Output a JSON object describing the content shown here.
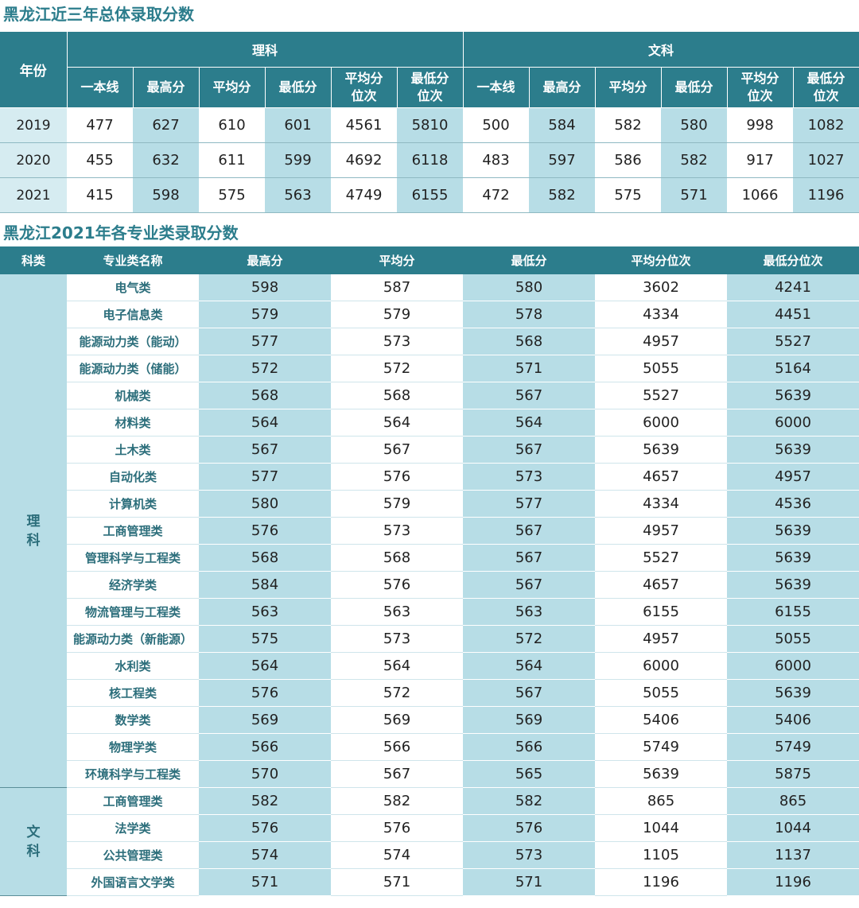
{
  "title_overall": "黑龙江近三年总体录取分数",
  "title_majors": "黑龙江2021年各专业类录取分数",
  "overall": {
    "year_header": "年份",
    "groups": [
      "理科",
      "文科"
    ],
    "sub_headers": [
      "一本线",
      "最高分",
      "平均分",
      "最低分",
      "平均分位次",
      "最低分位次"
    ],
    "rows": [
      {
        "year": "2019",
        "values": [
          "477",
          "627",
          "610",
          "601",
          "4561",
          "5810",
          "500",
          "584",
          "582",
          "580",
          "998",
          "1082"
        ]
      },
      {
        "year": "2020",
        "values": [
          "455",
          "632",
          "611",
          "599",
          "4692",
          "6118",
          "483",
          "597",
          "586",
          "582",
          "917",
          "1027"
        ]
      },
      {
        "year": "2021",
        "values": [
          "415",
          "598",
          "575",
          "563",
          "4749",
          "6155",
          "472",
          "582",
          "575",
          "571",
          "1066",
          "1196"
        ]
      }
    ]
  },
  "majors": {
    "headers": [
      "科类",
      "专业类名称",
      "最高分",
      "平均分",
      "最低分",
      "平均分位次",
      "最低分位次"
    ],
    "groups": [
      {
        "category": "理科",
        "rows": [
          {
            "name": "电气类",
            "values": [
              "598",
              "587",
              "580",
              "3602",
              "4241"
            ]
          },
          {
            "name": "电子信息类",
            "values": [
              "579",
              "579",
              "578",
              "4334",
              "4451"
            ]
          },
          {
            "name": "能源动力类（能动）",
            "values": [
              "577",
              "573",
              "568",
              "4957",
              "5527"
            ]
          },
          {
            "name": "能源动力类（储能）",
            "values": [
              "572",
              "572",
              "571",
              "5055",
              "5164"
            ]
          },
          {
            "name": "机械类",
            "values": [
              "568",
              "568",
              "567",
              "5527",
              "5639"
            ]
          },
          {
            "name": "材料类",
            "values": [
              "564",
              "564",
              "564",
              "6000",
              "6000"
            ]
          },
          {
            "name": "土木类",
            "values": [
              "567",
              "567",
              "567",
              "5639",
              "5639"
            ]
          },
          {
            "name": "自动化类",
            "values": [
              "577",
              "576",
              "573",
              "4657",
              "4957"
            ]
          },
          {
            "name": "计算机类",
            "values": [
              "580",
              "579",
              "577",
              "4334",
              "4536"
            ]
          },
          {
            "name": "工商管理类",
            "values": [
              "576",
              "573",
              "567",
              "4957",
              "5639"
            ]
          },
          {
            "name": "管理科学与工程类",
            "values": [
              "568",
              "568",
              "567",
              "5527",
              "5639"
            ]
          },
          {
            "name": "经济学类",
            "values": [
              "584",
              "576",
              "567",
              "4657",
              "5639"
            ]
          },
          {
            "name": "物流管理与工程类",
            "values": [
              "563",
              "563",
              "563",
              "6155",
              "6155"
            ]
          },
          {
            "name": "能源动力类（新能源）",
            "values": [
              "575",
              "573",
              "572",
              "4957",
              "5055"
            ]
          },
          {
            "name": "水利类",
            "values": [
              "564",
              "564",
              "564",
              "6000",
              "6000"
            ]
          },
          {
            "name": "核工程类",
            "values": [
              "576",
              "572",
              "567",
              "5055",
              "5639"
            ]
          },
          {
            "name": "数学类",
            "values": [
              "569",
              "569",
              "569",
              "5406",
              "5406"
            ]
          },
          {
            "name": "物理学类",
            "values": [
              "566",
              "566",
              "566",
              "5749",
              "5749"
            ]
          },
          {
            "name": "环境科学与工程类",
            "values": [
              "570",
              "567",
              "565",
              "5639",
              "5875"
            ]
          }
        ]
      },
      {
        "category": "文科",
        "rows": [
          {
            "name": "工商管理类",
            "values": [
              "582",
              "582",
              "582",
              "865",
              "865"
            ]
          },
          {
            "name": "法学类",
            "values": [
              "576",
              "576",
              "576",
              "1044",
              "1044"
            ]
          },
          {
            "name": "公共管理类",
            "values": [
              "574",
              "574",
              "573",
              "1105",
              "1137"
            ]
          },
          {
            "name": "外国语言文学类",
            "values": [
              "571",
              "571",
              "571",
              "1196",
              "1196"
            ]
          }
        ]
      }
    ]
  },
  "colors": {
    "header": "#2c7d8c",
    "title": "#2c7d8c",
    "shade": "#b7dde6",
    "year_cell": "#d6ecf1",
    "major_text": "#2c6e7b"
  }
}
